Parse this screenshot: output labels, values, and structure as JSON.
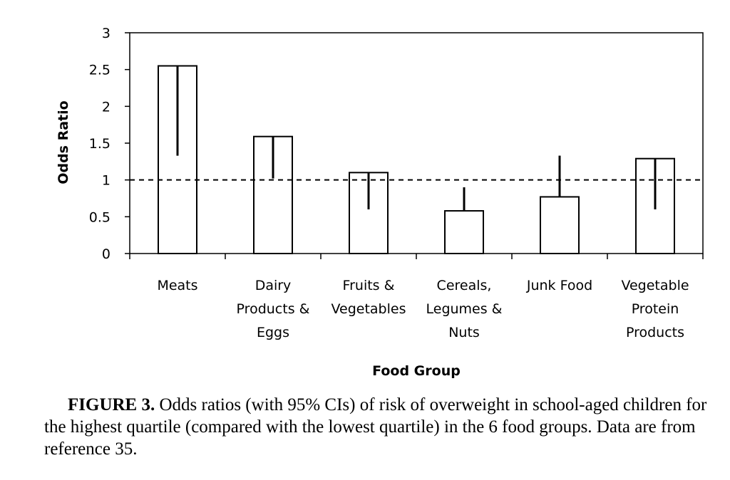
{
  "chart_data": {
    "type": "bar",
    "categories": [
      [
        "Meats"
      ],
      [
        "Dairy",
        "Products &",
        "Eggs"
      ],
      [
        "Fruits &",
        "Vegetables"
      ],
      [
        "Cereals,",
        "Legumes &",
        "Nuts"
      ],
      [
        "Junk Food"
      ],
      [
        "Vegetable",
        "Protein",
        "Products"
      ]
    ],
    "values": [
      2.55,
      1.59,
      1.1,
      0.58,
      0.77,
      1.29
    ],
    "ci_lower": [
      1.33,
      1.02,
      0.6,
      0.58,
      0.77,
      0.6
    ],
    "ci_upper": [
      2.55,
      1.59,
      1.1,
      0.9,
      1.33,
      1.29
    ],
    "reference_line": 1,
    "yticks": [
      "0",
      "0.5",
      "1",
      "1.5",
      "2",
      "2.5",
      "3"
    ],
    "ylim": [
      0,
      3
    ],
    "xlabel": "Food Group",
    "ylabel": "Odds Ratio",
    "grid": false
  },
  "caption": {
    "label": "FIGURE 3.",
    "text": "Odds ratios (with 95% CIs) of risk of overweight in school-aged children for the highest quartile (compared with the lowest quartile) in the 6 food groups. Data are from reference 35."
  }
}
